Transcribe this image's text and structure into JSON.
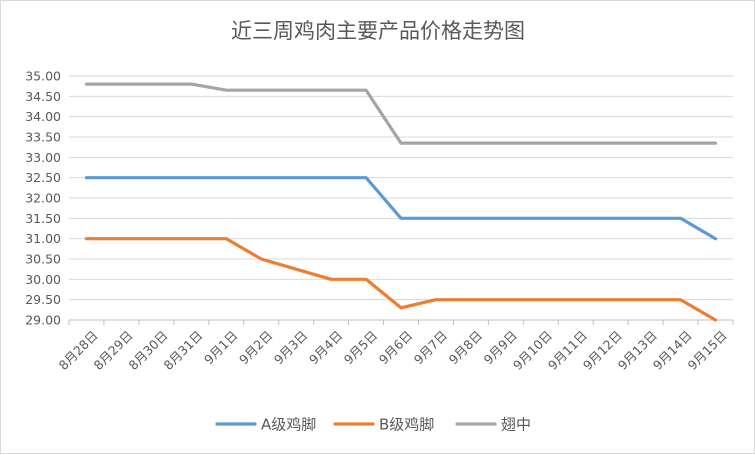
{
  "chart_data": {
    "type": "line",
    "title": "近三周鸡肉主要产品价格走势图",
    "xlabel": "",
    "ylabel": "",
    "categories": [
      "8月28日",
      "8月29日",
      "8月30日",
      "8月31日",
      "9月1日",
      "9月2日",
      "9月3日",
      "9月4日",
      "9月5日",
      "9月6日",
      "9月7日",
      "9月8日",
      "9月9日",
      "9月10日",
      "9月11日",
      "9月12日",
      "9月13日",
      "9月14日",
      "9月15日"
    ],
    "ylim": [
      29.0,
      35.0
    ],
    "ytick_labels": [
      "29.00",
      "29.50",
      "30.00",
      "30.50",
      "31.00",
      "31.50",
      "32.00",
      "32.50",
      "33.00",
      "33.50",
      "34.00",
      "34.50",
      "35.00"
    ],
    "grid": true,
    "legend_position": "bottom",
    "series": [
      {
        "name": "A级鸡脚",
        "color": "#5b9bd5",
        "values": [
          32.5,
          32.5,
          32.5,
          32.5,
          32.5,
          32.5,
          32.5,
          32.5,
          32.5,
          31.5,
          31.5,
          31.5,
          31.5,
          31.5,
          31.5,
          31.5,
          31.5,
          31.5,
          31.0
        ]
      },
      {
        "name": "B级鸡脚",
        "color": "#ed7d31",
        "values": [
          31.0,
          31.0,
          31.0,
          31.0,
          31.0,
          30.5,
          30.25,
          30.0,
          30.0,
          29.3,
          29.5,
          29.5,
          29.5,
          29.5,
          29.5,
          29.5,
          29.5,
          29.5,
          29.0
        ]
      },
      {
        "name": "翅中",
        "color": "#a5a5a5",
        "values": [
          34.8,
          34.8,
          34.8,
          34.8,
          34.65,
          34.65,
          34.65,
          34.65,
          34.65,
          33.35,
          33.35,
          33.35,
          33.35,
          33.35,
          33.35,
          33.35,
          33.35,
          33.35,
          33.35
        ]
      }
    ]
  }
}
